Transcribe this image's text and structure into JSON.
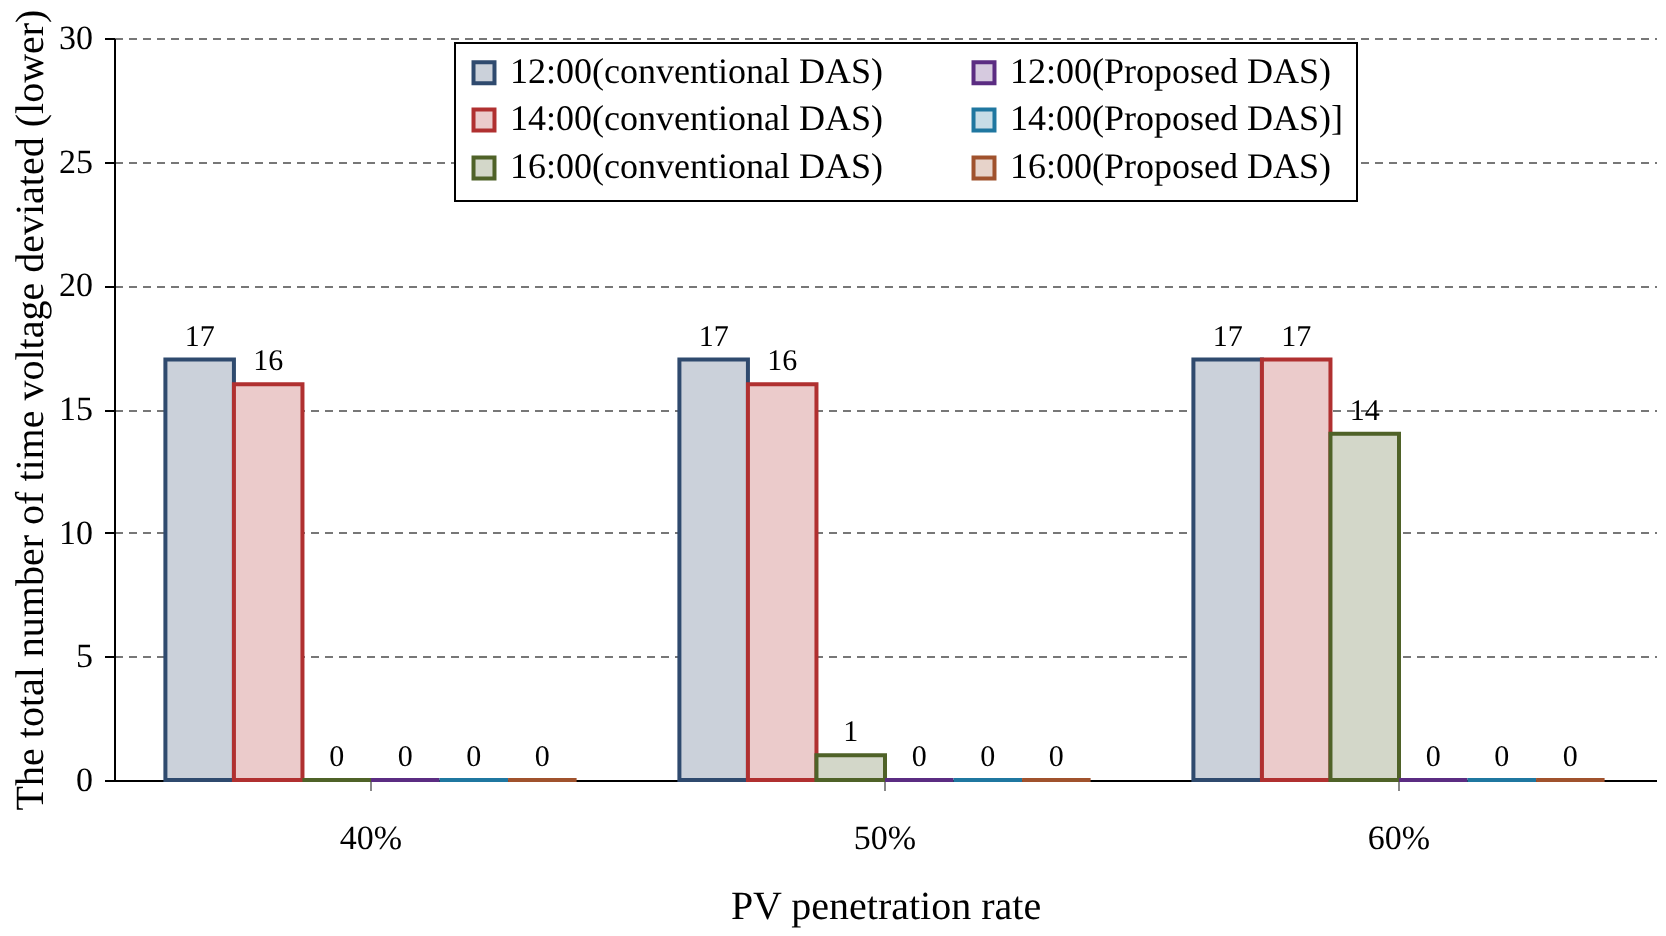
{
  "chart_data": {
    "type": "bar",
    "xlabel": "PV penetration rate",
    "ylabel": "The total number of time voltage deviated (lower)",
    "categories": [
      "40%",
      "50%",
      "60%"
    ],
    "series": [
      {
        "name": "12:00(conventional DAS)",
        "color": "#2f4a6e",
        "values": [
          17,
          17,
          17
        ]
      },
      {
        "name": "14:00(conventional DAS)",
        "color": "#b03030",
        "values": [
          16,
          16,
          17
        ]
      },
      {
        "name": "16:00(conventional DAS)",
        "color": "#4f6228",
        "values": [
          0,
          1,
          14
        ]
      },
      {
        "name": "12:00(Proposed DAS)",
        "color": "#5b2c82",
        "values": [
          0,
          0,
          0
        ]
      },
      {
        "name": "14:00(Proposed DAS)]",
        "color": "#1f77a0",
        "values": [
          0,
          0,
          0
        ]
      },
      {
        "name": "16:00(Proposed DAS)",
        "color": "#a0522d",
        "values": [
          0,
          0,
          0
        ]
      }
    ],
    "ylim": [
      0,
      30
    ],
    "yticks": [
      0,
      5,
      10,
      15,
      20,
      25,
      30
    ],
    "grid": "y",
    "legend": "top",
    "data_labels": true
  }
}
